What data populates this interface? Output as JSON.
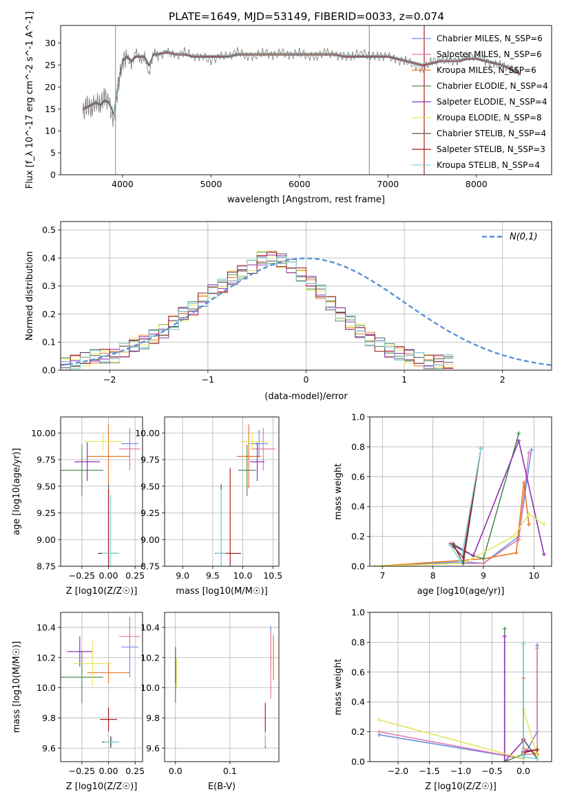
{
  "title": "PLATE=1649, MJD=53149, FIBERID=0033, z=0.074",
  "colors": {
    "chabrier_miles": "#6b8ee6",
    "salpeter_miles": "#e07aa8",
    "kroupa_miles": "#e8762a",
    "chabrier_elodie": "#4f8a57",
    "salpeter_elodie": "#8e2fb3",
    "kroupa_elodie": "#e3e85a",
    "chabrier_stelib": "#555555",
    "salpeter_stelib": "#a81c1c",
    "kroupa_stelib": "#7dd8de",
    "normal": "#5b8fd9",
    "grid": "#b0b0b0"
  },
  "legend_main": [
    "Chabrier MILES, N_SSP=6",
    "Salpeter MILES, N_SSP=6",
    "Kroupa MILES, N_SSP=6",
    "Chabrier ELODIE, N_SSP=4",
    "Salpeter ELODIE, N_SSP=4",
    "Kroupa ELODIE, N_SSP=8",
    "Chabrier STELIB, N_SSP=4",
    "Salpeter STELIB, N_SSP=3",
    "Kroupa STELIB, N_SSP=4"
  ],
  "chart_data": [
    {
      "id": "spectrum",
      "type": "line",
      "xlabel": "wavelength [Angstrom, rest frame]",
      "ylabel": "Flux [f_λ 10^-17 erg cm^-2 s^-1 A^-1]",
      "xlim": [
        3300,
        8850
      ],
      "ylim": [
        0,
        34
      ],
      "xticks": [
        4000,
        5000,
        6000,
        7000,
        8000
      ],
      "yticks": [
        0,
        5,
        10,
        15,
        20,
        25,
        30
      ],
      "x": [
        3550,
        3600,
        3650,
        3700,
        3750,
        3800,
        3850,
        3900,
        3950,
        4000,
        4050,
        4100,
        4150,
        4200,
        4250,
        4300,
        4350,
        4400,
        4500,
        4600,
        4700,
        4800,
        4900,
        5000,
        5100,
        5200,
        5300,
        5400,
        5500,
        5600,
        5700,
        5800,
        5900,
        6000,
        6100,
        6200,
        6300,
        6400,
        6500,
        6600,
        6700,
        6800,
        6900,
        7000,
        7100,
        7200,
        7300,
        7400,
        7500,
        7600,
        7700,
        7800,
        7900,
        8000,
        8100,
        8200,
        8300,
        8400,
        8500
      ],
      "observed_flux": [
        14,
        16,
        15,
        17,
        16,
        18,
        16,
        12,
        20,
        26,
        27,
        25,
        28,
        26,
        27,
        23,
        28,
        27,
        28,
        27,
        28,
        27,
        27,
        26,
        27,
        27,
        28,
        27,
        27,
        28,
        27,
        28,
        27,
        28,
        27,
        27,
        28,
        27,
        27,
        27,
        28,
        27,
        27,
        27,
        26,
        26,
        25,
        24,
        26,
        26,
        26,
        26,
        27,
        27,
        26,
        25,
        25,
        24,
        23
      ],
      "model_flux": [
        15,
        15.5,
        16,
        16.5,
        16,
        17,
        16.5,
        14,
        21,
        26,
        27,
        26,
        27,
        27,
        27,
        25,
        27.5,
        27.5,
        28,
        27.5,
        27.5,
        27,
        27,
        27,
        27,
        27,
        27.5,
        27.5,
        27.5,
        27.5,
        27.5,
        27.5,
        27.5,
        27.5,
        27.5,
        27.5,
        27.5,
        27.5,
        27,
        27,
        27,
        27,
        27,
        27,
        26.5,
        26,
        25.5,
        25,
        25.5,
        26,
        26,
        26,
        26.5,
        26.5,
        26,
        25.5,
        25,
        24,
        23
      ],
      "masked_lines_x": [
        3920,
        6790,
        7410
      ]
    },
    {
      "id": "residuals",
      "type": "histogram",
      "xlabel": "(data-model)/error",
      "ylabel": "Normed distribution",
      "xlim": [
        -2.5,
        2.5
      ],
      "ylim": [
        0,
        0.53
      ],
      "xticks": [
        -2,
        -1,
        0,
        1,
        2
      ],
      "yticks": [
        0.0,
        0.1,
        0.2,
        0.3,
        0.4,
        0.5
      ],
      "legend": "N(0,1)",
      "bin_width": 0.1,
      "approx_normed_height": [
        0.02,
        0.03,
        0.04,
        0.05,
        0.05,
        0.05,
        0.07,
        0.09,
        0.1,
        0.12,
        0.14,
        0.17,
        0.2,
        0.22,
        0.25,
        0.28,
        0.3,
        0.33,
        0.35,
        0.37,
        0.4,
        0.4,
        0.39,
        0.37,
        0.34,
        0.31,
        0.28,
        0.24,
        0.2,
        0.17,
        0.14,
        0.11,
        0.09,
        0.07,
        0.06,
        0.05,
        0.04,
        0.03,
        0.03,
        0.03
      ],
      "bin_start": -2.5
    },
    {
      "id": "age_vs_Z",
      "type": "errorbar",
      "xlabel": "Z [log10(Z/Z☉)]",
      "ylabel": "age [log10(age/yr)]",
      "xlim": [
        -0.45,
        0.32
      ],
      "ylim": [
        8.75,
        10.15
      ],
      "xticks": [
        -0.25,
        0.0,
        0.25
      ],
      "yticks": [
        8.75,
        9.0,
        9.25,
        9.5,
        9.75,
        10.0
      ],
      "points": [
        {
          "x": 0.2,
          "y": 9.9,
          "xerr": 0.08,
          "yerr": 0.13
        },
        {
          "x": 0.2,
          "y": 9.85,
          "xerr": 0.1,
          "yerr": 0.2
        },
        {
          "x": 0.0,
          "y": 9.78,
          "xerr": 0.2,
          "yerr": 0.3
        },
        {
          "x": -0.25,
          "y": 9.65,
          "xerr": 0.2,
          "yerr": 0.24
        },
        {
          "x": -0.2,
          "y": 9.73,
          "xerr": 0.12,
          "yerr": 0.18
        },
        {
          "x": -0.05,
          "y": 9.92,
          "xerr": 0.18,
          "yerr": 0.08
        },
        {
          "x": 0.0,
          "y": 8.87,
          "xerr": 0.1,
          "yerr": 0.65
        },
        {
          "x": 0.0,
          "y": 8.87,
          "xerr": 0.08,
          "yerr": 0.6
        },
        {
          "x": 0.02,
          "y": 8.87,
          "xerr": 0.08,
          "yerr": 0.55
        }
      ]
    },
    {
      "id": "age_vs_mass",
      "type": "errorbar",
      "xlabel": "mass [log10(M/M☉)]",
      "ylabel": "",
      "xlim": [
        8.7,
        10.6
      ],
      "ylim": [
        8.75,
        10.15
      ],
      "xticks": [
        9.0,
        9.5,
        10.0,
        10.5
      ],
      "yticks": [
        8.75,
        9.0,
        9.25,
        9.5,
        9.75,
        10.0
      ],
      "points": [
        {
          "x": 10.27,
          "y": 9.9,
          "xerr": 0.15,
          "yerr": 0.13
        },
        {
          "x": 10.34,
          "y": 9.85,
          "xerr": 0.2,
          "yerr": 0.2
        },
        {
          "x": 10.1,
          "y": 9.78,
          "xerr": 0.2,
          "yerr": 0.3
        },
        {
          "x": 10.07,
          "y": 9.65,
          "xerr": 0.15,
          "yerr": 0.24
        },
        {
          "x": 10.24,
          "y": 9.73,
          "xerr": 0.12,
          "yerr": 0.18
        },
        {
          "x": 10.16,
          "y": 9.92,
          "xerr": 0.2,
          "yerr": 0.08
        },
        {
          "x": 9.64,
          "y": 8.87,
          "xerr": 0.1,
          "yerr": 0.65
        },
        {
          "x": 9.79,
          "y": 8.87,
          "xerr": 0.18,
          "yerr": 0.8
        },
        {
          "x": 9.64,
          "y": 8.87,
          "xerr": 0.08,
          "yerr": 0.6
        }
      ]
    },
    {
      "id": "weight_vs_age",
      "type": "line",
      "xlabel": "age [log10(age/yr)]",
      "ylabel": "mass weight",
      "xlim": [
        6.75,
        10.35
      ],
      "ylim": [
        0,
        1.0
      ],
      "xticks": [
        7,
        8,
        9,
        10
      ],
      "yticks": [
        0.0,
        0.2,
        0.4,
        0.6,
        0.8,
        1.0
      ],
      "series": [
        {
          "name": "Chabrier MILES",
          "x": [
            6.85,
            8.6,
            9.0,
            9.7,
            9.95
          ],
          "y": [
            0.0,
            0.03,
            0.02,
            0.2,
            0.78
          ]
        },
        {
          "name": "Salpeter MILES",
          "x": [
            6.85,
            8.6,
            9.0,
            9.7,
            9.9
          ],
          "y": [
            0.0,
            0.02,
            0.02,
            0.18,
            0.76
          ]
        },
        {
          "name": "Kroupa MILES",
          "x": [
            6.85,
            8.6,
            9.0,
            9.65,
            9.8,
            9.9
          ],
          "y": [
            0.0,
            0.04,
            0.05,
            0.09,
            0.56,
            0.28
          ]
        },
        {
          "name": "Chabrier ELODIE",
          "x": [
            8.4,
            8.8,
            9.0,
            9.7
          ],
          "y": [
            0.15,
            0.07,
            0.05,
            0.89
          ]
        },
        {
          "name": "Salpeter ELODIE",
          "x": [
            8.4,
            8.8,
            9.7,
            10.2
          ],
          "y": [
            0.14,
            0.07,
            0.84,
            0.08
          ]
        },
        {
          "name": "Kroupa ELODIE",
          "x": [
            6.85,
            8.6,
            9.6,
            9.9,
            10.2
          ],
          "y": [
            0.0,
            0.02,
            0.2,
            0.35,
            0.28
          ]
        },
        {
          "name": "Chabrier STELIB",
          "x": [
            8.4,
            8.6,
            8.95
          ],
          "y": [
            0.15,
            0.02,
            0.79
          ]
        },
        {
          "name": "Salpeter STELIB",
          "x": [
            8.35,
            8.6,
            8.95
          ],
          "y": [
            0.15,
            0.06,
            0.79
          ]
        },
        {
          "name": "Kroupa STELIB",
          "x": [
            8.35,
            8.55,
            8.95
          ],
          "y": [
            0.14,
            0.03,
            0.79
          ]
        }
      ]
    },
    {
      "id": "mass_vs_Z",
      "type": "errorbar",
      "xlabel": "Z [log10(Z/Z☉)]",
      "ylabel": "mass [log10(M/M☉)]",
      "xlim": [
        -0.45,
        0.32
      ],
      "ylim": [
        9.51,
        10.5
      ],
      "xticks": [
        -0.25,
        0.0,
        0.25
      ],
      "yticks": [
        9.6,
        9.8,
        10.0,
        10.2,
        10.4
      ],
      "points": [
        {
          "x": 0.2,
          "y": 10.27,
          "xerr": 0.08,
          "yerr": 0.2
        },
        {
          "x": 0.2,
          "y": 10.34,
          "xerr": 0.1,
          "yerr": 0.12
        },
        {
          "x": 0.0,
          "y": 10.1,
          "xerr": 0.2,
          "yerr": 0.07
        },
        {
          "x": -0.25,
          "y": 10.07,
          "xerr": 0.2,
          "yerr": 0.17
        },
        {
          "x": -0.27,
          "y": 10.24,
          "xerr": 0.12,
          "yerr": 0.1
        },
        {
          "x": -0.15,
          "y": 10.16,
          "xerr": 0.18,
          "yerr": 0.15
        },
        {
          "x": 0.02,
          "y": 9.64,
          "xerr": 0.08,
          "yerr": 0.04
        },
        {
          "x": 0.0,
          "y": 9.79,
          "xerr": 0.08,
          "yerr": 0.08
        },
        {
          "x": 0.03,
          "y": 9.64,
          "xerr": 0.07,
          "yerr": 0.03
        }
      ]
    },
    {
      "id": "mass_vs_ebv",
      "type": "errorbar",
      "xlabel": "E(B-V)",
      "ylabel": "",
      "xlim": [
        -0.02,
        0.19
      ],
      "ylim": [
        9.51,
        10.5
      ],
      "xticks": [
        0.0,
        0.1
      ],
      "yticks": [
        9.6,
        9.8,
        10.0,
        10.2,
        10.4
      ],
      "points": [
        {
          "x": 0.175,
          "y": 10.27,
          "xerr": 0.0,
          "yerr": 0.14
        },
        {
          "x": 0.175,
          "y": 10.15,
          "xerr": 0.0,
          "yerr": 0.22
        },
        {
          "x": 0.18,
          "y": 10.2,
          "xerr": 0.0,
          "yerr": 0.15
        },
        {
          "x": 0.0,
          "y": 10.05,
          "xerr": 0.0,
          "yerr": 0.15
        },
        {
          "x": 0.0,
          "y": 10.15,
          "xerr": 0.0,
          "yerr": 0.12
        },
        {
          "x": 0.002,
          "y": 10.1,
          "xerr": 0.0,
          "yerr": 0.1
        },
        {
          "x": 0.165,
          "y": 9.64,
          "xerr": 0.0,
          "yerr": 0.04
        },
        {
          "x": 0.165,
          "y": 9.8,
          "xerr": 0.0,
          "yerr": 0.1
        },
        {
          "x": 0.165,
          "y": 9.66,
          "xerr": 0.0,
          "yerr": 0.05
        }
      ]
    },
    {
      "id": "weight_vs_Z",
      "type": "line",
      "xlabel": "Z [log10(Z/Z☉)]",
      "ylabel": "mass weight",
      "xlim": [
        -2.45,
        0.45
      ],
      "ylim": [
        0,
        1.0
      ],
      "xticks": [
        -2.0,
        -1.5,
        -1.0,
        -0.5,
        0.0
      ],
      "yticks": [
        0.0,
        0.2,
        0.4,
        0.6,
        0.8,
        1.0
      ],
      "series": [
        {
          "name": "Chabrier MILES",
          "x": [
            -2.3,
            0.0,
            0.0,
            0.22,
            0.22
          ],
          "y": [
            0.18,
            0.02,
            0.03,
            0.2,
            0.78
          ]
        },
        {
          "name": "Salpeter MILES",
          "x": [
            -2.3,
            0.0,
            0.0,
            0.22,
            0.22
          ],
          "y": [
            0.2,
            0.02,
            0.05,
            0.05,
            0.76
          ]
        },
        {
          "name": "Kroupa MILES",
          "x": [
            0.0,
            0.0,
            0.22,
            0.22
          ],
          "y": [
            0.56,
            0.09,
            0.05,
            0.08
          ]
        },
        {
          "name": "Chabrier ELODIE",
          "x": [
            -0.3,
            -0.3,
            0.0
          ],
          "y": [
            0.89,
            0.0,
            0.05
          ]
        },
        {
          "name": "Salpeter ELODIE",
          "x": [
            -0.3,
            -0.3,
            0.0,
            0.0,
            0.22
          ],
          "y": [
            0.84,
            0.0,
            0.14,
            0.07,
            0.08
          ]
        },
        {
          "name": "Kroupa ELODIE",
          "x": [
            -2.3,
            0.0,
            0.0,
            0.22
          ],
          "y": [
            0.28,
            0.02,
            0.35,
            0.04
          ]
        },
        {
          "name": "Chabrier STELIB",
          "x": [
            0.0,
            0.0,
            0.22
          ],
          "y": [
            0.79,
            0.15,
            0.02
          ]
        },
        {
          "name": "Salpeter STELIB",
          "x": [
            0.0,
            0.0,
            0.22
          ],
          "y": [
            0.15,
            0.06,
            0.08
          ]
        },
        {
          "name": "Kroupa STELIB",
          "x": [
            0.0,
            0.0,
            0.22
          ],
          "y": [
            0.79,
            0.03,
            0.02
          ]
        }
      ]
    }
  ]
}
